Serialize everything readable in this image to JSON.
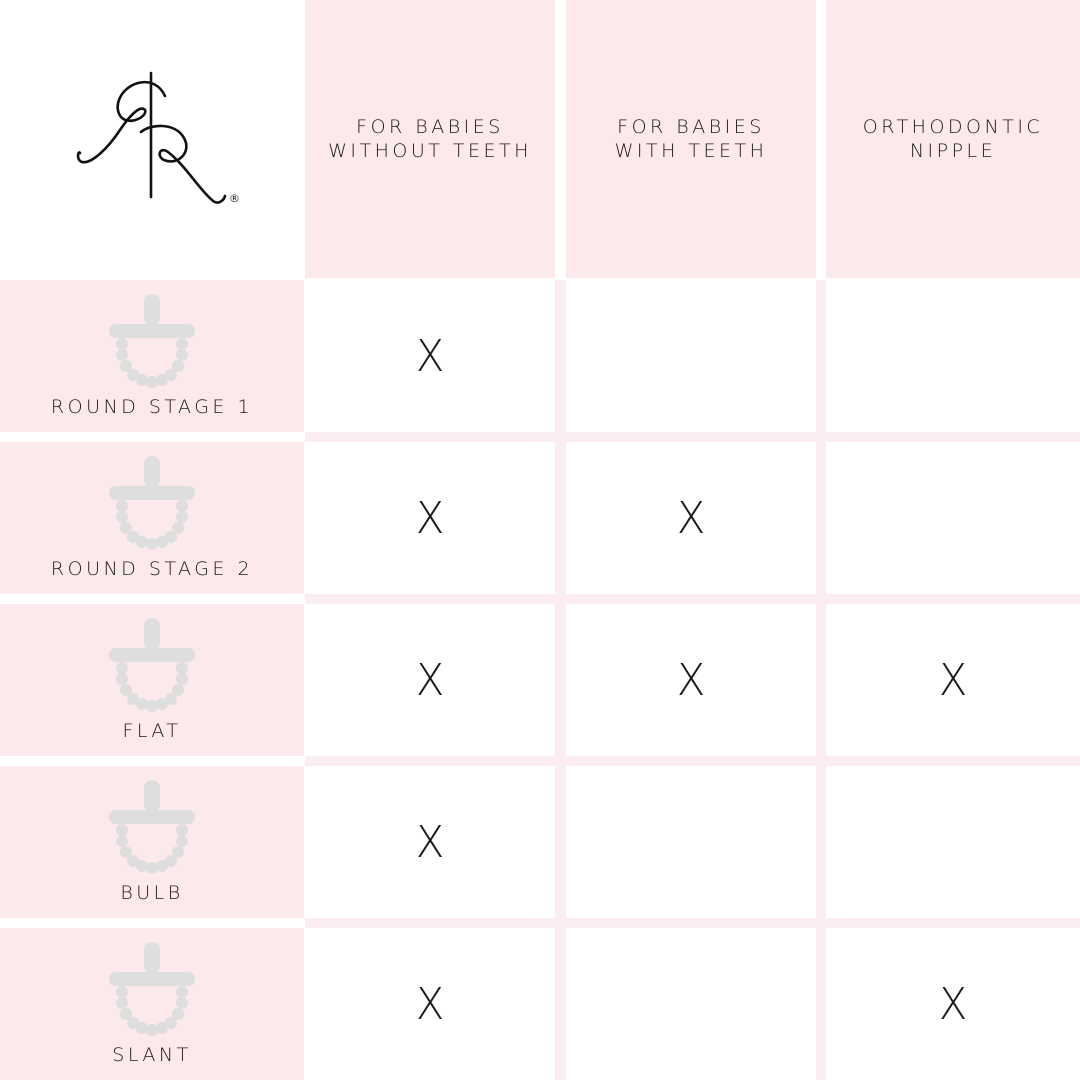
{
  "brand": {
    "logo": "RR monogram",
    "registered_mark": "®"
  },
  "columns": [
    {
      "line1": "FOR BABIES",
      "line2": "WITHOUT TEETH"
    },
    {
      "line1": "FOR BABIES",
      "line2": "WITH TEETH"
    },
    {
      "line1": "ORTHODONTIC",
      "line2": "NIPPLE"
    }
  ],
  "rows": [
    {
      "name": "ROUND STAGE 1",
      "icon": "pacifier-icon",
      "cells": [
        "X",
        "",
        ""
      ]
    },
    {
      "name": "ROUND STAGE 2",
      "icon": "pacifier-icon",
      "cells": [
        "X",
        "X",
        ""
      ]
    },
    {
      "name": "FLAT",
      "icon": "pacifier-icon",
      "cells": [
        "X",
        "X",
        "X"
      ]
    },
    {
      "name": "BULB",
      "icon": "pacifier-icon",
      "cells": [
        "X",
        "",
        ""
      ]
    },
    {
      "name": "SLANT",
      "icon": "pacifier-icon",
      "cells": [
        "X",
        "",
        "X"
      ]
    }
  ],
  "colors": {
    "pink": "#fbe9ec",
    "grid_line": "#fcedf0",
    "pacifier": "#dedede"
  }
}
